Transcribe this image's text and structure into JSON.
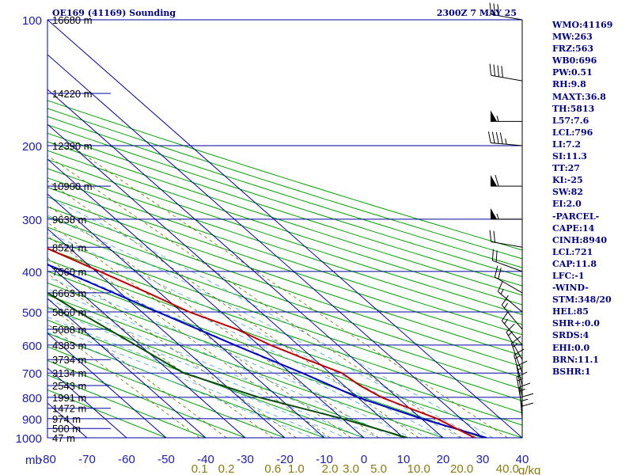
{
  "title_left": "OE169 (41169) Sounding",
  "title_right": "2300Z  7 MAY 25",
  "colors": {
    "grid": "#0000a0",
    "temperature": "#c00000",
    "dewpoint": "#0a4a0a",
    "parcel": "#0000c0",
    "dry_adiabat": "#00a000",
    "moist_adiabat": "#4aa0d8",
    "mixing_ratio": "#6a6a00",
    "wind": "#000000"
  },
  "chart_data": {
    "type": "skew-t",
    "pressure_label": "mb",
    "pressure_ticks": [
      100,
      200,
      300,
      400,
      500,
      600,
      700,
      800,
      900,
      1000
    ],
    "ylim": [
      100,
      1000
    ],
    "temperature_ticks": [
      -80,
      -70,
      -60,
      -50,
      -40,
      -30,
      -20,
      -10,
      0,
      10,
      20,
      30,
      40
    ],
    "xlim": [
      -80,
      40
    ],
    "mixing_ratio_label": "g/kg",
    "mixing_ratio_ticks": [
      "0.1",
      "0.2",
      "0.6",
      "1.0",
      "2.0",
      "3.0",
      "5.0",
      "10.0",
      "20.0",
      "40.0"
    ],
    "mixing_ratio_values": [
      0.1,
      0.2,
      0.6,
      1.0,
      2.0,
      3.0,
      5.0,
      10.0,
      20.0,
      40.0
    ],
    "height_labels": [
      {
        "p": 100,
        "label": "16680 m"
      },
      {
        "p": 150,
        "label": "14220 m"
      },
      {
        "p": 200,
        "label": "12390 m"
      },
      {
        "p": 250,
        "label": "10900 m"
      },
      {
        "p": 300,
        "label": "9638 m"
      },
      {
        "p": 350,
        "label": "8521 m"
      },
      {
        "p": 400,
        "label": "7560 m"
      },
      {
        "p": 450,
        "label": "6663 m"
      },
      {
        "p": 500,
        "label": "5860 m"
      },
      {
        "p": 550,
        "label": "5088 m"
      },
      {
        "p": 600,
        "label": "4383 m"
      },
      {
        "p": 650,
        "label": "3734 m"
      },
      {
        "p": 700,
        "label": "3134 m"
      },
      {
        "p": 750,
        "label": "2543 m"
      },
      {
        "p": 800,
        "label": "1991 m"
      },
      {
        "p": 850,
        "label": "1472 m"
      },
      {
        "p": 900,
        "label": "974 m"
      },
      {
        "p": 950,
        "label": "500 m"
      },
      {
        "p": 1000,
        "label": "47 m"
      }
    ],
    "temperature_profile": [
      {
        "p": 100,
        "t": -71
      },
      {
        "p": 150,
        "t": -62
      },
      {
        "p": 200,
        "t": -52
      },
      {
        "p": 250,
        "t": -42
      },
      {
        "p": 300,
        "t": -32
      },
      {
        "p": 350,
        "t": -26
      },
      {
        "p": 400,
        "t": -19
      },
      {
        "p": 450,
        "t": -13
      },
      {
        "p": 500,
        "t": -8
      },
      {
        "p": 550,
        "t": -1
      },
      {
        "p": 600,
        "t": 3
      },
      {
        "p": 650,
        "t": 8
      },
      {
        "p": 700,
        "t": 13
      },
      {
        "p": 750,
        "t": 14
      },
      {
        "p": 800,
        "t": 16
      },
      {
        "p": 850,
        "t": 20
      },
      {
        "p": 900,
        "t": 24
      },
      {
        "p": 950,
        "t": 26
      },
      {
        "p": 1000,
        "t": 28
      }
    ],
    "dewpoint_profile": [
      {
        "p": 160,
        "t": -79
      },
      {
        "p": 200,
        "t": -73
      },
      {
        "p": 250,
        "t": -63
      },
      {
        "p": 300,
        "t": -43
      },
      {
        "p": 400,
        "t": -41
      },
      {
        "p": 500,
        "t": -36
      },
      {
        "p": 700,
        "t": -27
      },
      {
        "p": 800,
        "t": -15
      },
      {
        "p": 900,
        "t": 0
      },
      {
        "p": 1000,
        "t": 11
      }
    ],
    "parcel_profile": [
      {
        "p": 160,
        "t": -79
      },
      {
        "p": 200,
        "t": -69
      },
      {
        "p": 300,
        "t": -45
      },
      {
        "p": 400,
        "t": -28
      },
      {
        "p": 500,
        "t": -16
      },
      {
        "p": 600,
        "t": -6
      },
      {
        "p": 700,
        "t": 3
      },
      {
        "p": 800,
        "t": 10
      },
      {
        "p": 900,
        "t": 20
      },
      {
        "p": 1000,
        "t": 31
      }
    ],
    "wind_barbs": [
      {
        "p": 100,
        "dir": 280,
        "spd": 30
      },
      {
        "p": 140,
        "dir": 280,
        "spd": 40
      },
      {
        "p": 175,
        "dir": 270,
        "spd": 55
      },
      {
        "p": 200,
        "dir": 275,
        "spd": 45
      },
      {
        "p": 250,
        "dir": 270,
        "spd": 60
      },
      {
        "p": 300,
        "dir": 270,
        "spd": 55
      },
      {
        "p": 350,
        "dir": 280,
        "spd": 20
      },
      {
        "p": 400,
        "dir": 290,
        "spd": 20
      },
      {
        "p": 450,
        "dir": 300,
        "spd": 20
      },
      {
        "p": 500,
        "dir": 310,
        "spd": 15
      },
      {
        "p": 550,
        "dir": 320,
        "spd": 15
      },
      {
        "p": 600,
        "dir": 320,
        "spd": 15
      },
      {
        "p": 650,
        "dir": 330,
        "spd": 15
      },
      {
        "p": 700,
        "dir": 340,
        "spd": 15
      },
      {
        "p": 750,
        "dir": 345,
        "spd": 15
      },
      {
        "p": 800,
        "dir": 350,
        "spd": 15
      },
      {
        "p": 850,
        "dir": 350,
        "spd": 15
      },
      {
        "p": 900,
        "dir": 355,
        "spd": 15
      },
      {
        "p": 950,
        "dir": 0,
        "spd": 15
      },
      {
        "p": 1000,
        "dir": 360,
        "spd": 10
      }
    ]
  },
  "indices": [
    "WMO:41169",
    "MW:263",
    "FRZ:563",
    "WB0:696",
    "PW:0.51",
    "RH:9.8",
    "MAXT:36.8",
    "TH:5813",
    "L57:7.6",
    "LCL:796",
    "LI:7.2",
    "SI:11.3",
    "TT:27",
    "KI:-25",
    "SW:82",
    "EI:2.0",
    "-PARCEL-",
    "CAPE:14",
    "CINH:8940",
    "LCL:721",
    "CAP:11.8",
    "LFC:-1",
    "-WIND-",
    "STM:348/20",
    "HEL:85",
    "SHR+:0.0",
    "SRDS:4",
    "EHI:0.0",
    "BRN:11.1",
    "BSHR:1"
  ]
}
